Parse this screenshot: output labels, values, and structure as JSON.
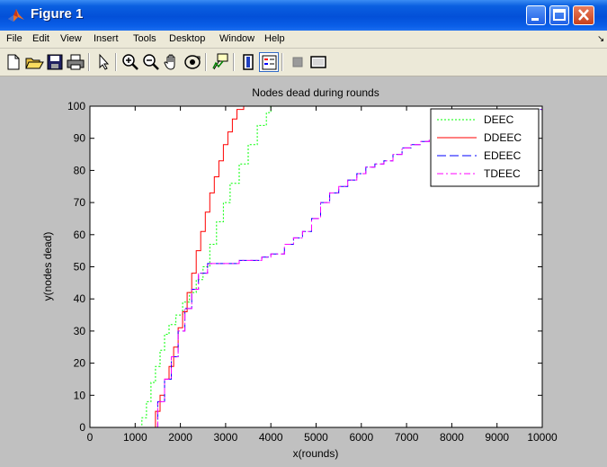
{
  "window": {
    "title": "Figure 1"
  },
  "menu": {
    "items": [
      "File",
      "Edit",
      "View",
      "Insert",
      "Tools",
      "Desktop",
      "Window",
      "Help"
    ]
  },
  "toolbar": {
    "icons": [
      "new-figure-icon",
      "open-file-icon",
      "save-icon",
      "print-icon",
      "pointer-icon",
      "zoom-in-icon",
      "zoom-out-icon",
      "pan-hand-icon",
      "rotate-3d-icon",
      "data-cursor-icon",
      "colorbar-icon",
      "legend-icon",
      "hide-plot-tools-icon",
      "show-plot-tools-icon"
    ]
  },
  "colors": {
    "DEEC": "#00ff00",
    "DDEEC": "#ff0000",
    "EDEEC": "#0000ff",
    "TDEEC": "#ff00ff"
  },
  "chart_data": {
    "type": "line",
    "title": "Nodes dead during rounds",
    "xlabel": "x(rounds)",
    "ylabel": "y(nodes dead)",
    "xlim": [
      0,
      10000
    ],
    "ylim": [
      0,
      100
    ],
    "xticks": [
      0,
      1000,
      2000,
      3000,
      4000,
      5000,
      6000,
      7000,
      8000,
      9000,
      10000
    ],
    "yticks": [
      0,
      10,
      20,
      30,
      40,
      50,
      60,
      70,
      80,
      90,
      100
    ],
    "grid": false,
    "legend_position": "top-right",
    "series": [
      {
        "name": "DEEC",
        "x": [
          0,
          1000,
          1150,
          1250,
          1350,
          1450,
          1550,
          1650,
          1750,
          1900,
          2050,
          2200,
          2350,
          2500,
          2650,
          2800,
          2950,
          3100,
          3300,
          3500,
          3700,
          3900,
          4000,
          10000
        ],
        "y": [
          0,
          0,
          3,
          8,
          14,
          19,
          24,
          29,
          32,
          35,
          39,
          42,
          46,
          50,
          57,
          64,
          70,
          76,
          82,
          88,
          94,
          98,
          100,
          100
        ]
      },
      {
        "name": "DDEEC",
        "x": [
          0,
          1350,
          1450,
          1550,
          1650,
          1750,
          1850,
          1950,
          2050,
          2150,
          2250,
          2350,
          2450,
          2550,
          2650,
          2750,
          2850,
          2950,
          3050,
          3150,
          3250,
          3400,
          10000
        ],
        "y": [
          0,
          0,
          5,
          10,
          15,
          19,
          25,
          31,
          36,
          42,
          48,
          55,
          61,
          67,
          73,
          78,
          83,
          88,
          92,
          96,
          99,
          100,
          100
        ]
      },
      {
        "name": "EDEEC",
        "x": [
          0,
          1350,
          1500,
          1650,
          1800,
          1950,
          2100,
          2250,
          2400,
          2600,
          3000,
          3300,
          3500,
          3800,
          4000,
          4300,
          4500,
          4700,
          4900,
          5100,
          5300,
          5500,
          5700,
          5900,
          6100,
          6300,
          6500,
          6700,
          6900,
          7100,
          7300,
          7500,
          7700,
          7900,
          8100,
          8300,
          8500,
          8800,
          9100,
          9400,
          9700,
          10000
        ],
        "y": [
          0,
          0,
          8,
          15,
          22,
          30,
          37,
          43,
          48,
          51,
          51,
          52,
          52,
          53,
          54,
          57,
          59,
          61,
          65,
          70,
          73,
          75,
          77,
          79,
          81,
          82,
          83,
          85,
          87,
          88,
          89,
          90,
          92,
          93,
          95,
          96,
          96,
          97,
          97,
          98,
          99,
          99
        ]
      },
      {
        "name": "TDEEC",
        "x": [
          0,
          1350,
          1500,
          1650,
          1800,
          1950,
          2100,
          2250,
          2400,
          2600,
          3000,
          3300,
          3500,
          3800,
          4000,
          4300,
          4500,
          4700,
          4900,
          5100,
          5300,
          5500,
          5700,
          5900,
          6100,
          6300,
          6500,
          6700,
          6900,
          7100,
          7300,
          7500,
          7700,
          7900,
          8100,
          8300,
          8500,
          8800,
          9100,
          9400,
          9700,
          10000
        ],
        "y": [
          0,
          0,
          8,
          15,
          22,
          30,
          37,
          43,
          48,
          51,
          51,
          52,
          52,
          53,
          54,
          57,
          59,
          61,
          65,
          70,
          73,
          75,
          77,
          79,
          81,
          82,
          83,
          85,
          87,
          88,
          89,
          90,
          92,
          93,
          95,
          96,
          96,
          97,
          98,
          98,
          99,
          100
        ]
      }
    ]
  }
}
